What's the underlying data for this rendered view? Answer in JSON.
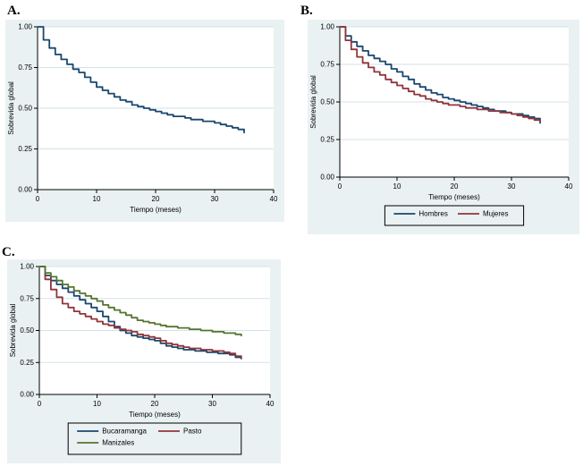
{
  "panels": [
    {
      "label": "A."
    },
    {
      "label": "B."
    },
    {
      "label": "C."
    }
  ],
  "colors": {
    "background": "#e9f1f2",
    "plot_bg": "#ffffff",
    "grid": "#d2e3e8",
    "axis": "#000000",
    "navy": "#1a476f",
    "maroon": "#90353b",
    "green": "#55752f"
  },
  "chart_data": [
    {
      "type": "line",
      "subtype": "kaplan-meier-step",
      "panel": "A.",
      "title": "",
      "xlabel": "Tiempo (meses)",
      "ylabel": "Sobrevida global",
      "xlim": [
        0,
        40
      ],
      "ylim": [
        0,
        1
      ],
      "xticks": [
        0,
        10,
        20,
        30,
        40
      ],
      "yticks": [
        0,
        0.25,
        0.5,
        0.75,
        1
      ],
      "ytick_decimals": 2,
      "grid": true,
      "legend": null,
      "x": [
        0,
        1,
        2,
        3,
        4,
        5,
        6,
        7,
        8,
        9,
        10,
        11,
        12,
        13,
        14,
        15,
        16,
        17,
        18,
        19,
        20,
        21,
        22,
        23,
        24,
        25,
        26,
        27,
        28,
        29,
        30,
        31,
        32,
        33,
        34,
        35
      ],
      "series": [
        {
          "name": "Sobrevida global",
          "color": "#1a476f",
          "y": [
            1.0,
            0.92,
            0.87,
            0.83,
            0.8,
            0.77,
            0.74,
            0.72,
            0.69,
            0.66,
            0.63,
            0.61,
            0.59,
            0.57,
            0.55,
            0.54,
            0.52,
            0.51,
            0.5,
            0.49,
            0.48,
            0.47,
            0.46,
            0.45,
            0.45,
            0.44,
            0.43,
            0.43,
            0.42,
            0.42,
            0.41,
            0.4,
            0.39,
            0.38,
            0.37,
            0.35
          ]
        }
      ]
    },
    {
      "type": "line",
      "subtype": "kaplan-meier-step",
      "panel": "B.",
      "title": "",
      "xlabel": "Tiempo (meses)",
      "ylabel": "Sobrevida global",
      "xlim": [
        0,
        40
      ],
      "ylim": [
        0,
        1
      ],
      "xticks": [
        0,
        10,
        20,
        30,
        40
      ],
      "yticks": [
        0,
        0.25,
        0.5,
        0.75,
        1
      ],
      "ytick_decimals": 2,
      "grid": true,
      "legend": {
        "position": "bottom",
        "cols": 2
      },
      "x": [
        0,
        1,
        2,
        3,
        4,
        5,
        6,
        7,
        8,
        9,
        10,
        11,
        12,
        13,
        14,
        15,
        16,
        17,
        18,
        19,
        20,
        21,
        22,
        23,
        24,
        25,
        26,
        27,
        28,
        29,
        30,
        31,
        32,
        33,
        34,
        35
      ],
      "series": [
        {
          "name": "Hombres",
          "color": "#1a476f",
          "y": [
            1.0,
            0.94,
            0.9,
            0.87,
            0.84,
            0.81,
            0.79,
            0.77,
            0.75,
            0.72,
            0.7,
            0.67,
            0.65,
            0.62,
            0.6,
            0.58,
            0.56,
            0.55,
            0.53,
            0.52,
            0.51,
            0.5,
            0.49,
            0.48,
            0.47,
            0.46,
            0.45,
            0.44,
            0.44,
            0.43,
            0.42,
            0.42,
            0.41,
            0.4,
            0.39,
            0.36
          ]
        },
        {
          "name": "Mujeres",
          "color": "#90353b",
          "y": [
            1.0,
            0.91,
            0.85,
            0.8,
            0.76,
            0.73,
            0.7,
            0.68,
            0.65,
            0.63,
            0.61,
            0.59,
            0.57,
            0.55,
            0.54,
            0.52,
            0.51,
            0.5,
            0.49,
            0.48,
            0.48,
            0.47,
            0.46,
            0.46,
            0.45,
            0.45,
            0.44,
            0.44,
            0.43,
            0.43,
            0.42,
            0.41,
            0.4,
            0.39,
            0.38,
            0.37
          ]
        }
      ]
    },
    {
      "type": "line",
      "subtype": "kaplan-meier-step",
      "panel": "C.",
      "title": "",
      "xlabel": "Tiempo (meses)",
      "ylabel": "Sobrevida global",
      "xlim": [
        0,
        40
      ],
      "ylim": [
        0,
        1
      ],
      "xticks": [
        0,
        10,
        20,
        30,
        40
      ],
      "yticks": [
        0,
        0.25,
        0.5,
        0.75,
        1
      ],
      "ytick_decimals": 2,
      "grid": true,
      "legend": {
        "position": "bottom",
        "cols": 2
      },
      "x": [
        0,
        1,
        2,
        3,
        4,
        5,
        6,
        7,
        8,
        9,
        10,
        11,
        12,
        13,
        14,
        15,
        16,
        17,
        18,
        19,
        20,
        21,
        22,
        23,
        24,
        25,
        26,
        27,
        28,
        29,
        30,
        31,
        32,
        33,
        34,
        35
      ],
      "series": [
        {
          "name": "Bucaramanga",
          "color": "#1a476f",
          "y": [
            1.0,
            0.93,
            0.89,
            0.86,
            0.83,
            0.8,
            0.77,
            0.74,
            0.71,
            0.68,
            0.65,
            0.61,
            0.57,
            0.53,
            0.5,
            0.48,
            0.46,
            0.45,
            0.44,
            0.43,
            0.42,
            0.4,
            0.38,
            0.37,
            0.36,
            0.35,
            0.35,
            0.34,
            0.34,
            0.33,
            0.33,
            0.32,
            0.32,
            0.31,
            0.29,
            0.28
          ]
        },
        {
          "name": "Pasto",
          "color": "#90353b",
          "y": [
            1.0,
            0.9,
            0.82,
            0.76,
            0.71,
            0.68,
            0.65,
            0.63,
            0.61,
            0.59,
            0.57,
            0.55,
            0.54,
            0.52,
            0.51,
            0.5,
            0.49,
            0.47,
            0.46,
            0.45,
            0.44,
            0.42,
            0.4,
            0.39,
            0.38,
            0.37,
            0.36,
            0.36,
            0.35,
            0.35,
            0.34,
            0.34,
            0.33,
            0.32,
            0.3,
            0.29
          ]
        },
        {
          "name": "Manizales",
          "color": "#55752f",
          "y": [
            1.0,
            0.95,
            0.92,
            0.89,
            0.86,
            0.84,
            0.81,
            0.79,
            0.77,
            0.75,
            0.73,
            0.7,
            0.68,
            0.66,
            0.64,
            0.62,
            0.6,
            0.58,
            0.57,
            0.56,
            0.55,
            0.54,
            0.53,
            0.53,
            0.52,
            0.52,
            0.51,
            0.51,
            0.5,
            0.5,
            0.49,
            0.49,
            0.48,
            0.48,
            0.47,
            0.46
          ]
        }
      ]
    }
  ]
}
